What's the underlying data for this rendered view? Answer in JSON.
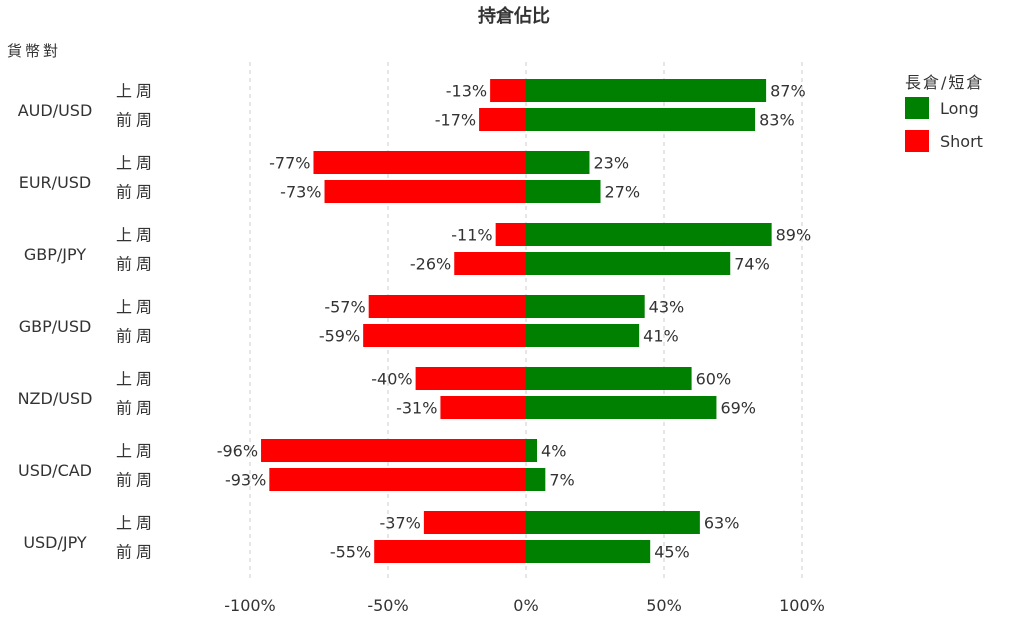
{
  "chart_data": {
    "type": "bar",
    "orientation": "horizontal-diverging",
    "title": "持倉佔比",
    "ylabel": "貨幣對",
    "xlim": [
      -100,
      100
    ],
    "x_ticks": [
      -100,
      -50,
      0,
      50,
      100
    ],
    "x_tick_labels": [
      "-100%",
      "-50%",
      "0%",
      "50%",
      "100%"
    ],
    "grid": "vertical dashed",
    "legend": {
      "title": "長倉/短倉",
      "placement": "top-right",
      "items": [
        {
          "label": "Long",
          "color": "#008000"
        },
        {
          "label": "Short",
          "color": "#ff0000"
        }
      ]
    },
    "groups": [
      {
        "pair": "AUD/USD",
        "rows": [
          {
            "period": "上周",
            "short": -13,
            "long": 87,
            "short_label": "-13%",
            "long_label": "87%"
          },
          {
            "period": "前周",
            "short": -17,
            "long": 83,
            "short_label": "-17%",
            "long_label": "83%"
          }
        ]
      },
      {
        "pair": "EUR/USD",
        "rows": [
          {
            "period": "上周",
            "short": -77,
            "long": 23,
            "short_label": "-77%",
            "long_label": "23%"
          },
          {
            "period": "前周",
            "short": -73,
            "long": 27,
            "short_label": "-73%",
            "long_label": "27%"
          }
        ]
      },
      {
        "pair": "GBP/JPY",
        "rows": [
          {
            "period": "上周",
            "short": -11,
            "long": 89,
            "short_label": "-11%",
            "long_label": "89%"
          },
          {
            "period": "前周",
            "short": -26,
            "long": 74,
            "short_label": "-26%",
            "long_label": "74%"
          }
        ]
      },
      {
        "pair": "GBP/USD",
        "rows": [
          {
            "period": "上周",
            "short": -57,
            "long": 43,
            "short_label": "-57%",
            "long_label": "43%"
          },
          {
            "period": "前周",
            "short": -59,
            "long": 41,
            "short_label": "-59%",
            "long_label": "41%"
          }
        ]
      },
      {
        "pair": "NZD/USD",
        "rows": [
          {
            "period": "上周",
            "short": -40,
            "long": 60,
            "short_label": "-40%",
            "long_label": "60%"
          },
          {
            "period": "前周",
            "short": -31,
            "long": 69,
            "short_label": "-31%",
            "long_label": "69%"
          }
        ]
      },
      {
        "pair": "USD/CAD",
        "rows": [
          {
            "period": "上周",
            "short": -96,
            "long": 4,
            "short_label": "-96%",
            "long_label": "4%"
          },
          {
            "period": "前周",
            "short": -93,
            "long": 7,
            "short_label": "-93%",
            "long_label": "7%"
          }
        ]
      },
      {
        "pair": "USD/JPY",
        "rows": [
          {
            "period": "上周",
            "short": -37,
            "long": 63,
            "short_label": "-37%",
            "long_label": "63%"
          },
          {
            "period": "前周",
            "short": -55,
            "long": 45,
            "short_label": "-55%",
            "long_label": "45%"
          }
        ]
      }
    ]
  }
}
